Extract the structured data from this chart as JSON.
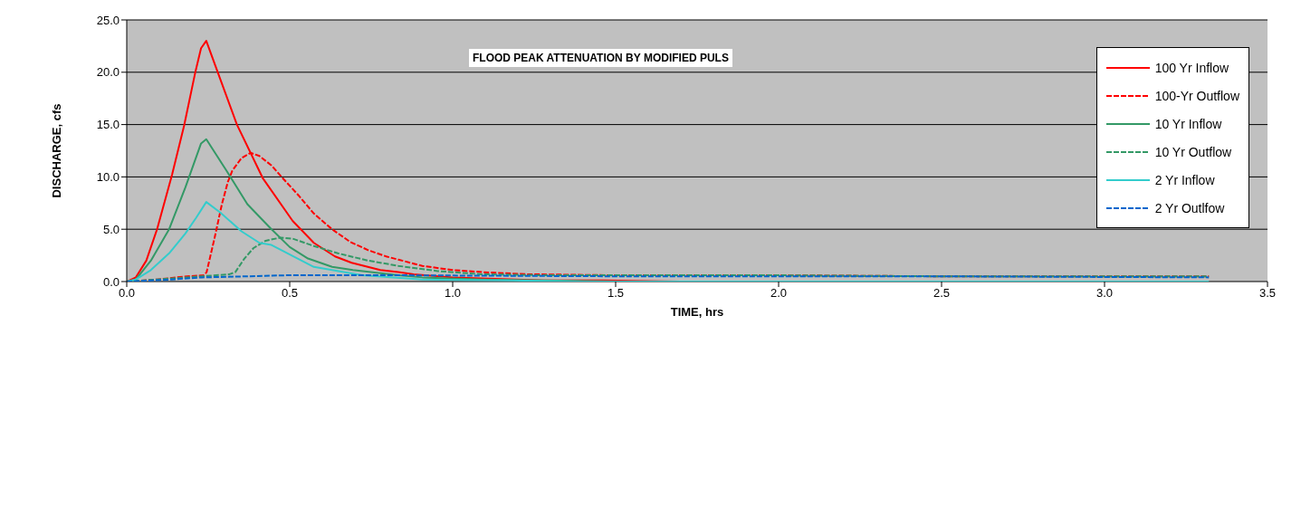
{
  "chart_data": {
    "type": "line",
    "title": "FLOOD PEAK ATTENUATION BY MODIFIED PULS",
    "xlabel": "TIME, hrs",
    "ylabel": "DISCHARGE, cfs",
    "xlim": [
      0,
      3.5
    ],
    "xticks": [
      {
        "value": 0,
        "label": "0.0"
      },
      {
        "value": 0.5,
        "label": "0.5"
      },
      {
        "value": 1,
        "label": "1.0"
      },
      {
        "value": 1.5,
        "label": "1.5"
      },
      {
        "value": 2,
        "label": "2.0"
      },
      {
        "value": 2.5,
        "label": "2.5"
      },
      {
        "value": 3,
        "label": "3.0"
      },
      {
        "value": 3.5,
        "label": "3.5"
      }
    ],
    "ylim": [
      0,
      25
    ],
    "yticks": [
      {
        "value": 0,
        "label": "0.0"
      },
      {
        "value": 5,
        "label": "5.0"
      },
      {
        "value": 10,
        "label": "10.0"
      },
      {
        "value": 15,
        "label": "15.0"
      },
      {
        "value": 20,
        "label": "20.0"
      },
      {
        "value": 25,
        "label": "25.0"
      }
    ],
    "grid": "y",
    "legend": "top right",
    "marker": "none",
    "series": [
      {
        "name": "100 Yr Inflow",
        "color": "#ff0000",
        "line_style": "solid",
        "x": [
          0,
          0.028,
          0.06,
          0.093,
          0.139,
          0.176,
          0.211,
          0.228,
          0.244,
          0.278,
          0.338,
          0.417,
          0.509,
          0.574,
          0.639,
          0.69,
          0.778,
          0.833,
          0.88,
          1.0,
          1.28,
          1.46,
          1.7
        ],
        "values": [
          0,
          0.4,
          2.0,
          5.0,
          10.2,
          14.9,
          20.1,
          22.3,
          23.0,
          20.1,
          15.0,
          9.9,
          5.8,
          3.7,
          2.4,
          1.8,
          1.1,
          0.9,
          0.7,
          0.4,
          0.1,
          0.1,
          0
        ]
      },
      {
        "name": "100-Yr Outflow",
        "color": "#ff0000",
        "line_style": "dashed",
        "x": [
          0,
          0.093,
          0.185,
          0.236,
          0.245,
          0.269,
          0.292,
          0.31,
          0.324,
          0.352,
          0.38,
          0.407,
          0.444,
          0.481,
          0.528,
          0.574,
          0.63,
          0.685,
          0.741,
          0.796,
          0.833,
          0.907,
          1.0,
          1.093,
          1.23,
          1.5,
          2.0,
          2.5,
          3.32
        ],
        "values": [
          0,
          0.2,
          0.5,
          0.6,
          0.9,
          4.1,
          7.4,
          9.5,
          10.6,
          11.8,
          12.3,
          12.0,
          11.1,
          9.8,
          8.2,
          6.5,
          5.0,
          3.8,
          3.0,
          2.4,
          2.1,
          1.5,
          1.1,
          0.9,
          0.7,
          0.6,
          0.6,
          0.5,
          0.5
        ]
      },
      {
        "name": "10 Yr Inflow",
        "color": "#339966",
        "line_style": "solid",
        "x": [
          0,
          0.028,
          0.074,
          0.13,
          0.18,
          0.228,
          0.244,
          0.306,
          0.37,
          0.444,
          0.5,
          0.556,
          0.63,
          0.694,
          0.833,
          0.907,
          1.09,
          1.28,
          1.5
        ],
        "values": [
          0,
          0.2,
          2.0,
          5.0,
          9.0,
          13.2,
          13.6,
          10.6,
          7.4,
          5.0,
          3.3,
          2.2,
          1.4,
          1.1,
          0.6,
          0.4,
          0.2,
          0.1,
          0
        ]
      },
      {
        "name": "10 Yr Outflow",
        "color": "#339966",
        "line_style": "dashed",
        "x": [
          0,
          0.093,
          0.231,
          0.315,
          0.333,
          0.361,
          0.389,
          0.426,
          0.472,
          0.509,
          0.574,
          0.648,
          0.741,
          0.833,
          0.954,
          1.09,
          1.28,
          2.0,
          2.5,
          3.32
        ],
        "values": [
          0,
          0.2,
          0.5,
          0.7,
          0.9,
          2.2,
          3.2,
          3.9,
          4.2,
          4.1,
          3.4,
          2.7,
          2.0,
          1.5,
          1.0,
          0.7,
          0.6,
          0.6,
          0.5,
          0.5
        ]
      },
      {
        "name": "2 Yr Inflow",
        "color": "#33cccc",
        "line_style": "solid",
        "x": [
          0,
          0.028,
          0.074,
          0.13,
          0.18,
          0.213,
          0.244,
          0.287,
          0.352,
          0.407,
          0.444,
          0.574,
          0.722,
          0.907,
          1.185,
          1.4,
          2.5,
          3.32
        ],
        "values": [
          0,
          0.2,
          1.1,
          2.7,
          4.6,
          6.1,
          7.6,
          6.6,
          4.8,
          3.7,
          3.5,
          1.4,
          0.6,
          0.2,
          0.1,
          0,
          0,
          0
        ]
      },
      {
        "name": "2 Yr Outlfow",
        "color": "#0066cc",
        "line_style": "dashed",
        "x": [
          0,
          0.139,
          0.231,
          0.37,
          0.491,
          0.833,
          1.5,
          2.0,
          2.5,
          3.32
        ],
        "values": [
          0,
          0.2,
          0.4,
          0.5,
          0.6,
          0.6,
          0.5,
          0.5,
          0.5,
          0.4
        ]
      }
    ]
  }
}
